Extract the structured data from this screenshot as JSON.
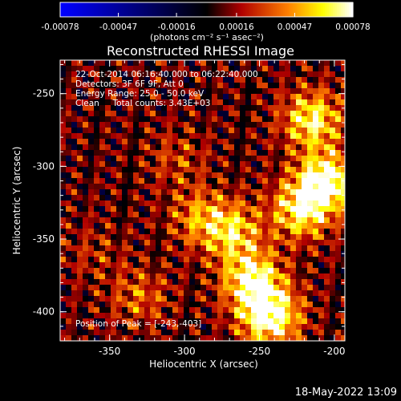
{
  "colorbar": {
    "tick_labels": [
      "-0.00078",
      "-0.00047",
      "-0.00016",
      "0.00016",
      "0.00047",
      "0.00078"
    ],
    "tick_values": [
      -0.00078,
      -0.00047,
      -0.00016,
      0.00016,
      0.00047,
      0.00078
    ],
    "range": [
      -0.00078,
      0.00078
    ],
    "unit_label": "(photons cm⁻² s⁻¹ asec⁻²)",
    "colors": [
      "#0000ff",
      "#000000",
      "#b00000",
      "#ff8000",
      "#ffff00",
      "#ffffff"
    ]
  },
  "chart_data": {
    "type": "heatmap",
    "title": "Reconstructed RHESSI Image",
    "xlabel": "Heliocentric X (arcsec)",
    "ylabel": "Heliocentric Y (arcsec)",
    "xlim": [
      -383,
      -193
    ],
    "ylim": [
      -420,
      -227
    ],
    "xticks": [
      -350,
      -300,
      -250,
      -200
    ],
    "xtick_labels": [
      "-350",
      "-300",
      "-250",
      "-200"
    ],
    "yticks": [
      -250,
      -300,
      -350,
      -400
    ],
    "ytick_labels": [
      "-250",
      "-300",
      "-350",
      "-400"
    ],
    "annotations": [
      "22-Oct-2014 06:16:40.000 to 06:22:40.000",
      "Detectors: 3F 6F 9F, Att 0",
      "Energy Range: 25.0 - 50.0 keV",
      "Clean     Total counts: 3.43E+03"
    ],
    "peak_label": "Position of Peak = [-243,-403]",
    "peak": [
      -243,
      -403
    ],
    "sources": [
      {
        "x": -205,
        "y": -310,
        "value": 0.00075
      },
      {
        "x": -215,
        "y": -268,
        "value": 0.0006
      },
      {
        "x": -222,
        "y": -330,
        "value": 0.0006
      },
      {
        "x": -243,
        "y": -403,
        "value": 0.00078
      },
      {
        "x": -255,
        "y": -378,
        "value": 0.00065
      },
      {
        "x": -268,
        "y": -345,
        "value": 0.00048
      },
      {
        "x": -290,
        "y": -335,
        "value": 0.00035
      },
      {
        "x": -305,
        "y": -295,
        "value": 0.0002
      },
      {
        "x": -330,
        "y": -390,
        "value": 0.00028
      },
      {
        "x": -360,
        "y": -360,
        "value": 0.00014
      }
    ],
    "background_level": 8e-05
  },
  "footer": {
    "date": "18-May-2022 13:09"
  }
}
